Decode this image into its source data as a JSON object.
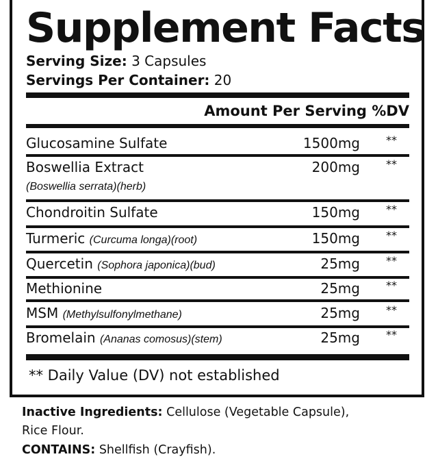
{
  "title": "Supplement Facts",
  "serving_size": {
    "label": "Serving Size:",
    "value": "3 Capsules"
  },
  "servings_per_container": {
    "label": "Servings Per Container:",
    "value": "20"
  },
  "header": {
    "amount": "Amount Per Serving",
    "dv": "%DV"
  },
  "ingredients": [
    {
      "name": "Glucosamine Sulfate",
      "source": "",
      "amount": "1500mg",
      "dv": "**"
    },
    {
      "name": "Boswellia Extract",
      "source": "(Boswellia serrata)(herb)",
      "amount": "200mg",
      "dv": "**"
    },
    {
      "name": "Chondroitin Sulfate",
      "source": "",
      "amount": "150mg",
      "dv": "**"
    },
    {
      "name": "Turmeric",
      "source": "(Curcuma longa)(root)",
      "amount": "150mg",
      "dv": "**"
    },
    {
      "name": "Quercetin",
      "source": "(Sophora japonica)(bud)",
      "amount": "25mg",
      "dv": "**"
    },
    {
      "name": "Methionine",
      "source": "",
      "amount": "25mg",
      "dv": "**"
    },
    {
      "name": "MSM",
      "source": "(Methylsulfonylmethane)",
      "amount": "25mg",
      "dv": "**"
    },
    {
      "name": "Bromelain",
      "source": "(Ananas comosus)(stem)",
      "amount": "25mg",
      "dv": "**"
    }
  ],
  "footnote": "** Daily Value (DV) not established",
  "inactive": {
    "label": "Inactive Ingredients:",
    "value": "Cellulose (Vegetable Capsule),",
    "value2": "Rice Flour."
  },
  "contains": {
    "label": "CONTAINS:",
    "value": "Shellfish (Crayfish)."
  }
}
